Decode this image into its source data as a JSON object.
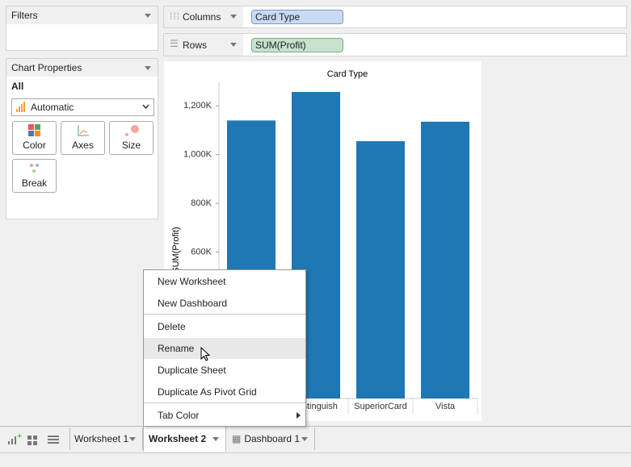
{
  "filters": {
    "title": "Filters"
  },
  "chart_properties": {
    "title": "Chart Properties",
    "scope": "All",
    "mark_type": "Automatic",
    "buttons": [
      "Color",
      "Axes",
      "Size",
      "Break"
    ]
  },
  "shelves": {
    "columns": {
      "label": "Columns",
      "pill": "Card Type"
    },
    "rows": {
      "label": "Rows",
      "pill": "SUM(Profit)"
    }
  },
  "chart_data": {
    "type": "bar",
    "title": "Card Type",
    "y_label": "SUM(Profit)",
    "categories": [
      null,
      "Distinguish",
      "SuperiorCard",
      "Vista"
    ],
    "values": [
      1140000,
      1257000,
      1055000,
      1135000
    ],
    "color": "#1f77b4",
    "ylim": [
      0,
      1300000
    ],
    "yticks": [
      {
        "value": 600000,
        "label": "600K"
      },
      {
        "value": 800000,
        "label": "800K"
      },
      {
        "value": 1000000,
        "label": "1,000K"
      },
      {
        "value": 1200000,
        "label": "1,200K"
      }
    ]
  },
  "context_menu": {
    "items": [
      "New Worksheet",
      "New Dashboard",
      "Delete",
      "Rename",
      "Duplicate Sheet",
      "Duplicate As Pivot Grid",
      "Tab Color"
    ]
  },
  "tabs": [
    "Worksheet 1",
    "Worksheet 2",
    "Dashboard 1"
  ]
}
